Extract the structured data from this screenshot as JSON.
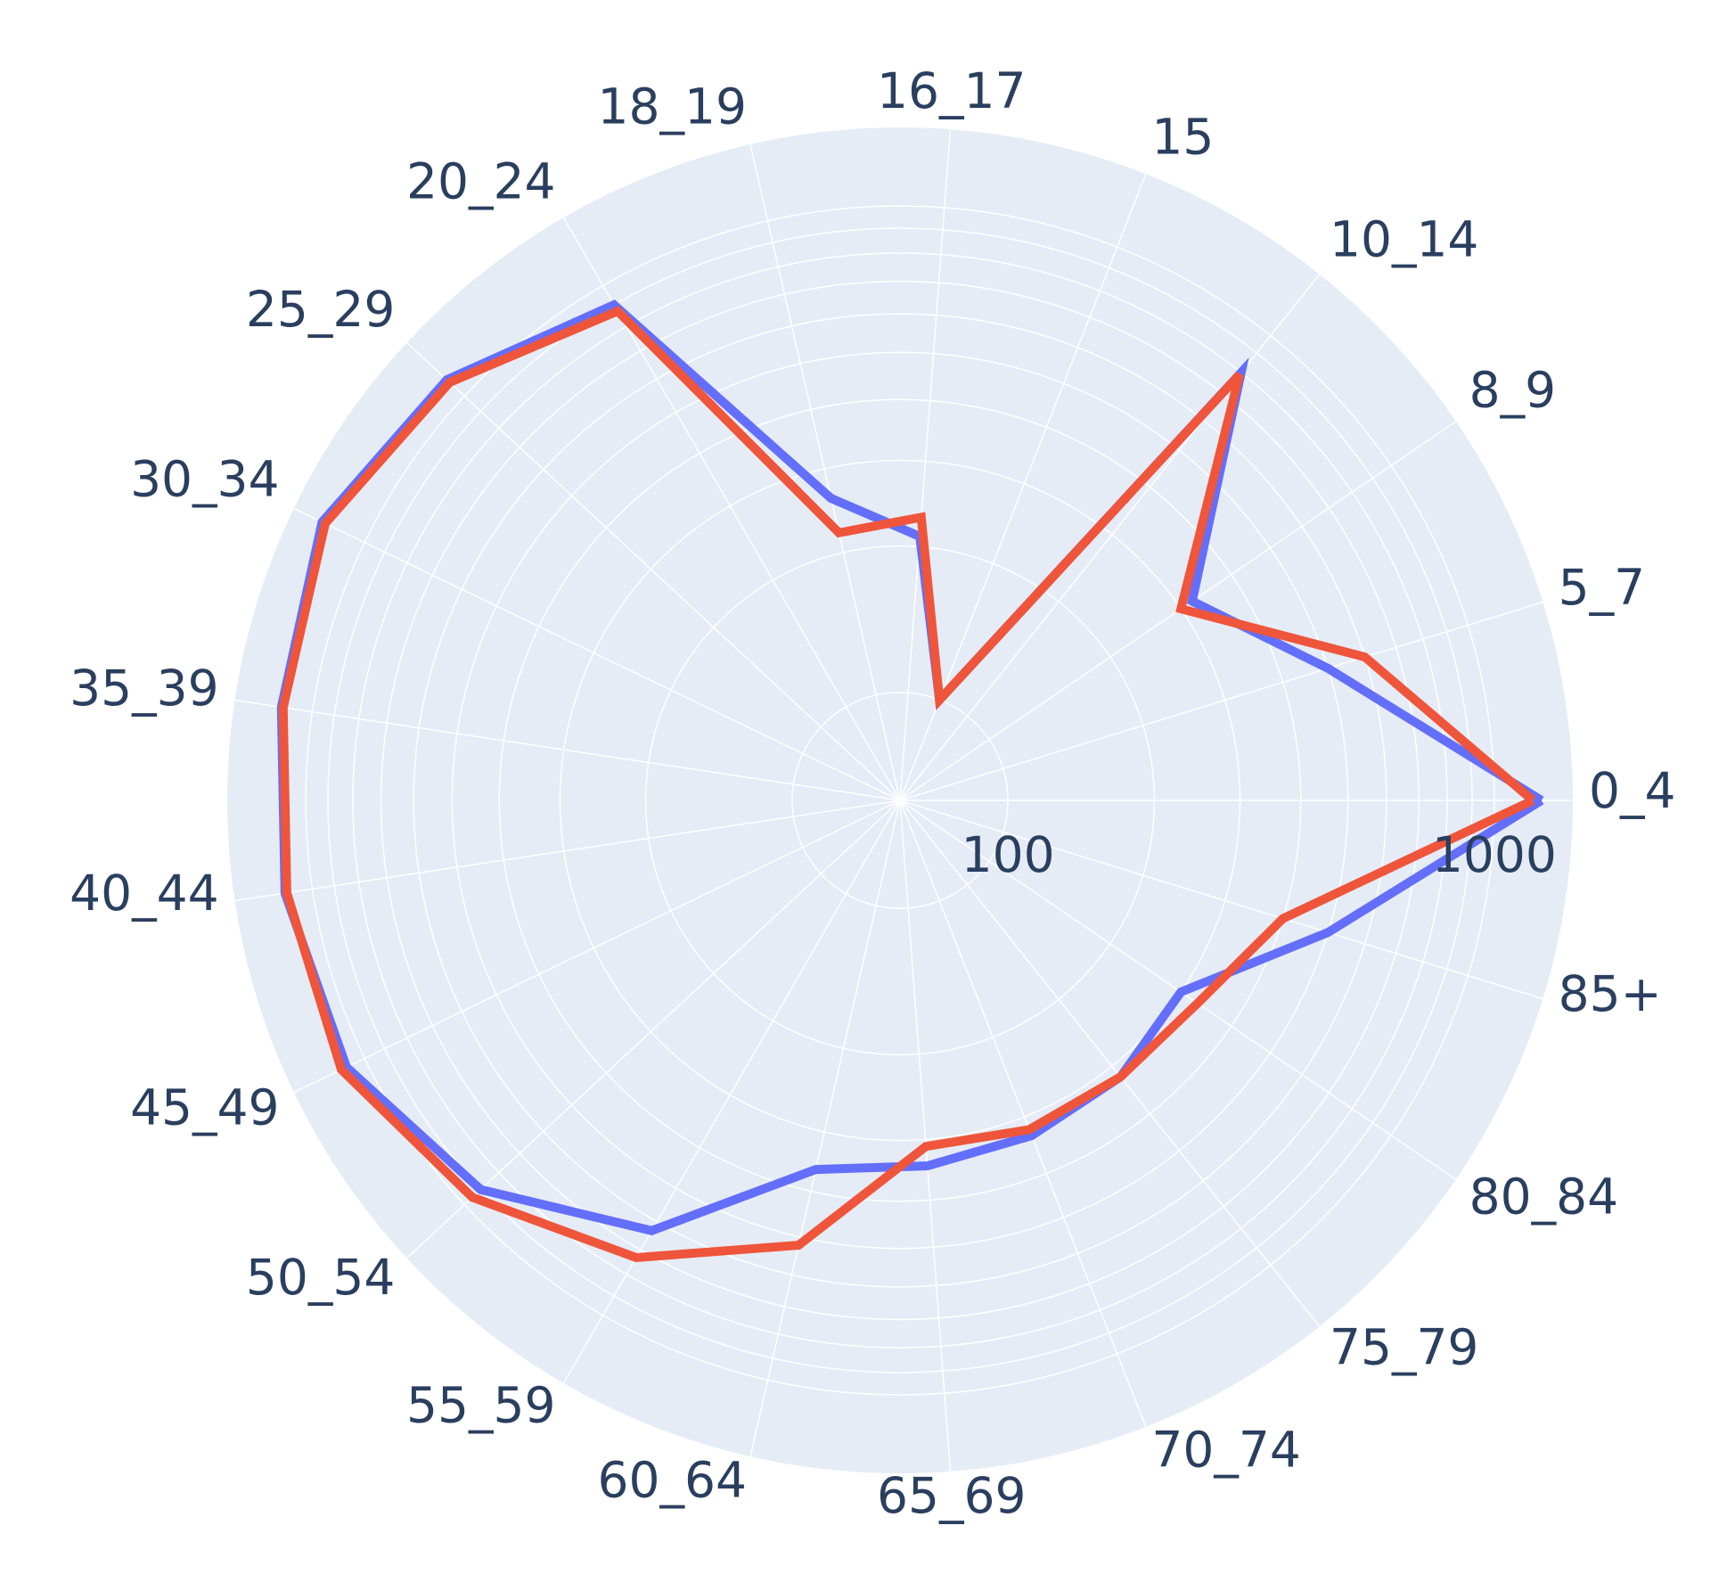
{
  "chart_data": {
    "type": "line",
    "subtype": "polar",
    "title": "",
    "colors": {
      "background": "#ffffff",
      "polar_bg": "#e5ecf6",
      "grid": "#ffffff",
      "text": "#2a3f5f"
    },
    "radial_axis": {
      "scale": "log",
      "range": [
        60,
        1450
      ],
      "tick_labels": [
        "100",
        "1000"
      ],
      "tick_values": [
        100,
        1000
      ],
      "grid_values": [
        100,
        200,
        300,
        400,
        500,
        600,
        700,
        800,
        900,
        1000
      ]
    },
    "categories": [
      "0_4",
      "5_7",
      "8_9",
      "10_14",
      "15",
      "16_17",
      "18_19",
      "20_24",
      "25_29",
      "30_34",
      "35_39",
      "40_44",
      "45_49",
      "50_54",
      "55_59",
      "60_64",
      "65_69",
      "70_74",
      "75_79",
      "80_84",
      "85+"
    ],
    "series": [
      {
        "color": "#636efa",
        "values": [
          1250,
          500,
          320,
          800,
          100,
          210,
          260,
          900,
          1120,
          1250,
          1160,
          1140,
          1100,
          900,
          630,
          360,
          340,
          330,
          320,
          300,
          500
        ]
      },
      {
        "color": "#ef553b",
        "values": [
          1200,
          600,
          300,
          790,
          100,
          230,
          220,
          870,
          1100,
          1230,
          1150,
          1130,
          1130,
          950,
          730,
          520,
          310,
          320,
          320,
          330,
          400
        ]
      }
    ]
  }
}
